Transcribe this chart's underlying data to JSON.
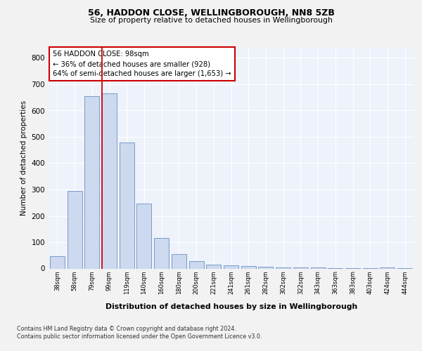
{
  "title1": "56, HADDON CLOSE, WELLINGBOROUGH, NN8 5ZB",
  "title2": "Size of property relative to detached houses in Wellingborough",
  "xlabel": "Distribution of detached houses by size in Wellingborough",
  "ylabel": "Number of detached properties",
  "categories": [
    "38sqm",
    "58sqm",
    "79sqm",
    "99sqm",
    "119sqm",
    "140sqm",
    "160sqm",
    "180sqm",
    "200sqm",
    "221sqm",
    "241sqm",
    "261sqm",
    "282sqm",
    "302sqm",
    "322sqm",
    "343sqm",
    "363sqm",
    "383sqm",
    "403sqm",
    "424sqm",
    "444sqm"
  ],
  "values": [
    47,
    295,
    655,
    665,
    478,
    248,
    115,
    55,
    27,
    15,
    13,
    10,
    6,
    5,
    4,
    3,
    2,
    1,
    1,
    5,
    1
  ],
  "bar_color": "#ccd9ee",
  "bar_edge_color": "#6a8fc0",
  "ylim": [
    0,
    840
  ],
  "yticks": [
    0,
    100,
    200,
    300,
    400,
    500,
    600,
    700,
    800
  ],
  "property_label": "56 HADDON CLOSE: 98sqm",
  "annotation_line1": "← 36% of detached houses are smaller (928)",
  "annotation_line2": "64% of semi-detached houses are larger (1,653) →",
  "red_line_bar_index": 3,
  "annotation_box_color": "#ffffff",
  "annotation_box_edge_color": "#cc0000",
  "footer1": "Contains HM Land Registry data © Crown copyright and database right 2024.",
  "footer2": "Contains public sector information licensed under the Open Government Licence v3.0.",
  "background_color": "#eef2fb",
  "grid_color": "#ffffff",
  "bar_width": 0.85,
  "fig_bg": "#f2f2f2"
}
